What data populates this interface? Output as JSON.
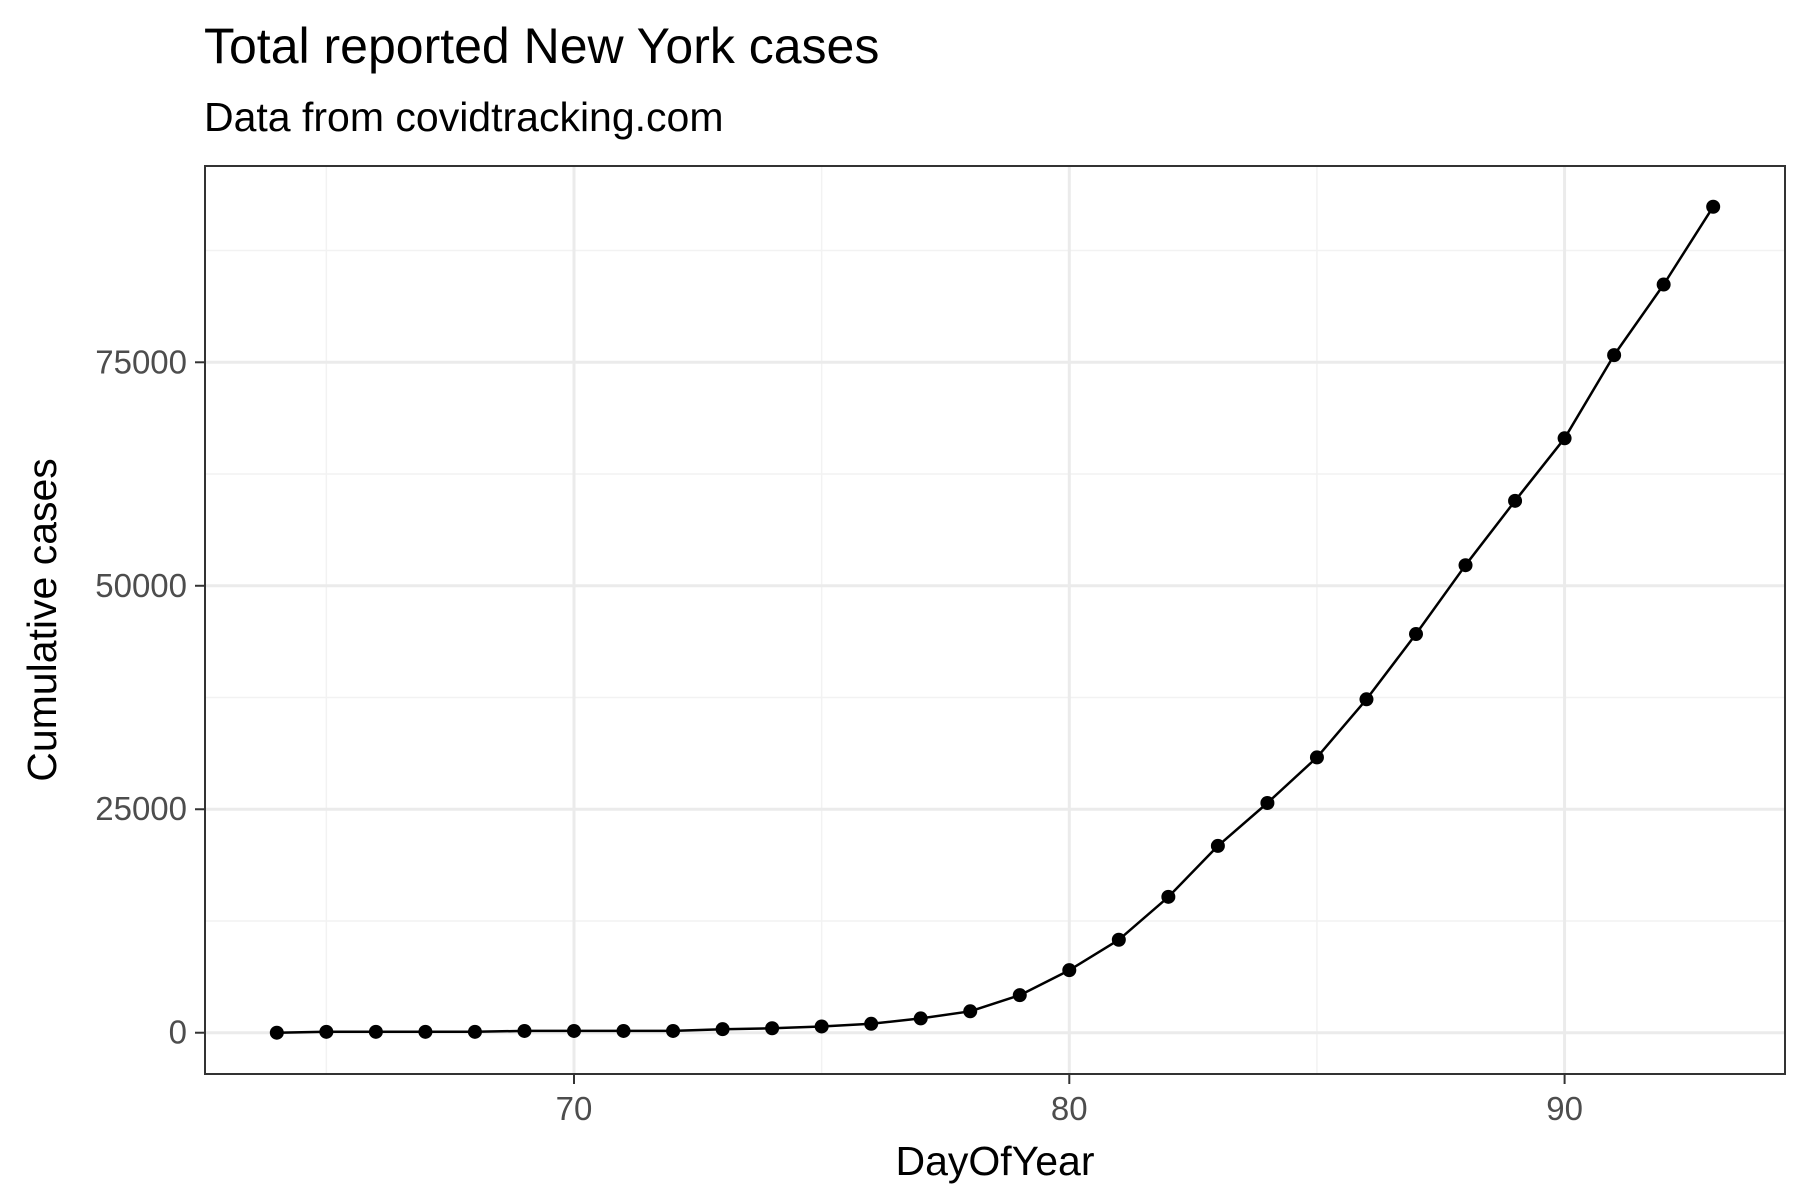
{
  "chart_data": {
    "type": "line",
    "title": "Total reported New York cases",
    "subtitle": "Data from covidtracking.com",
    "xlabel": "DayOfYear",
    "ylabel": "Cumulative cases",
    "xlim": [
      62.55,
      94.45
    ],
    "ylim": [
      -4617,
      96958
    ],
    "x_ticks": [
      70,
      80,
      90
    ],
    "x_tick_labels": [
      "70",
      "80",
      "90"
    ],
    "y_ticks": [
      0,
      25000,
      50000,
      75000
    ],
    "y_tick_labels": [
      "0",
      "25000",
      "50000",
      "75000"
    ],
    "x_minor_ticks": [
      65,
      75,
      85
    ],
    "y_minor_ticks": [
      12500,
      37500,
      62500,
      87500
    ],
    "grid": true,
    "legend": "none",
    "series": [
      {
        "x": [
          64,
          65,
          66,
          67,
          68,
          69,
          70,
          71,
          72,
          73,
          74,
          75,
          76,
          77,
          78,
          79,
          80,
          81,
          82,
          83,
          84,
          85,
          86,
          87,
          88,
          89,
          90,
          91,
          92,
          93
        ],
        "values": [
          0,
          100,
          100,
          100,
          100,
          200,
          200,
          200,
          200,
          400,
          500,
          700,
          1000,
          1600,
          2400,
          4200,
          7000,
          10400,
          15200,
          20900,
          25700,
          30800,
          37300,
          44600,
          52300,
          59500,
          66500,
          75800,
          83700,
          92400
        ],
        "color": "#000000"
      }
    ],
    "colors": {
      "line": "#000000",
      "points": "#000000",
      "panel_border": "#333333",
      "major_grid": "#ebebeb",
      "minor_grid": "#f2f2f2",
      "tick_labels": "#4d4d4d"
    }
  }
}
